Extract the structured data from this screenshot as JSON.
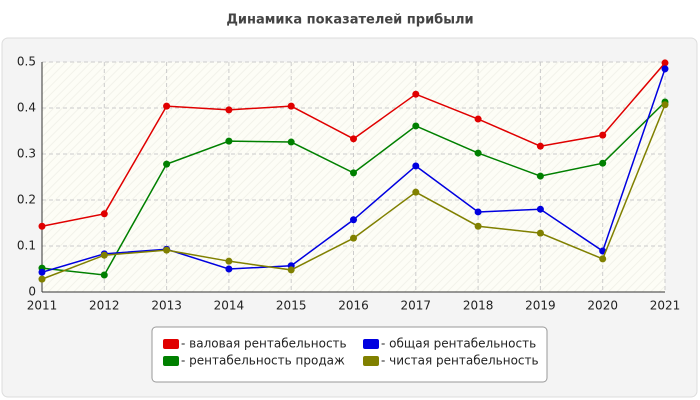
{
  "chart_data": {
    "type": "line",
    "title": "Динамика показателей прибыли",
    "x": [
      2011,
      2012,
      2013,
      2014,
      2015,
      2016,
      2017,
      2018,
      2019,
      2020,
      2021
    ],
    "xlim": [
      2011,
      2021
    ],
    "xticks": [
      2011,
      2012,
      2013,
      2014,
      2015,
      2016,
      2017,
      2018,
      2019,
      2020,
      2021
    ],
    "ylim": [
      0,
      0.5
    ],
    "yticks": [
      0,
      0.1,
      0.2,
      0.3,
      0.4,
      0.5
    ],
    "grid": true,
    "series": [
      {
        "name": "- валовая рентабельность",
        "color": "#e00000",
        "values": [
          0.143,
          0.17,
          0.404,
          0.396,
          0.404,
          0.333,
          0.43,
          0.376,
          0.317,
          0.341,
          0.498
        ]
      },
      {
        "name": "- рентабельность продаж",
        "color": "#008000",
        "values": [
          0.052,
          0.037,
          0.278,
          0.328,
          0.326,
          0.259,
          0.361,
          0.302,
          0.252,
          0.28,
          0.413
        ]
      },
      {
        "name": "- общая рентабельность",
        "color": "#0000e0",
        "values": [
          0.043,
          0.083,
          0.093,
          0.05,
          0.057,
          0.157,
          0.274,
          0.174,
          0.18,
          0.089,
          0.485
        ]
      },
      {
        "name": "- чистая рентабельность",
        "color": "#808000",
        "values": [
          0.028,
          0.08,
          0.091,
          0.067,
          0.048,
          0.117,
          0.217,
          0.143,
          0.128,
          0.072,
          0.407
        ]
      }
    ]
  }
}
